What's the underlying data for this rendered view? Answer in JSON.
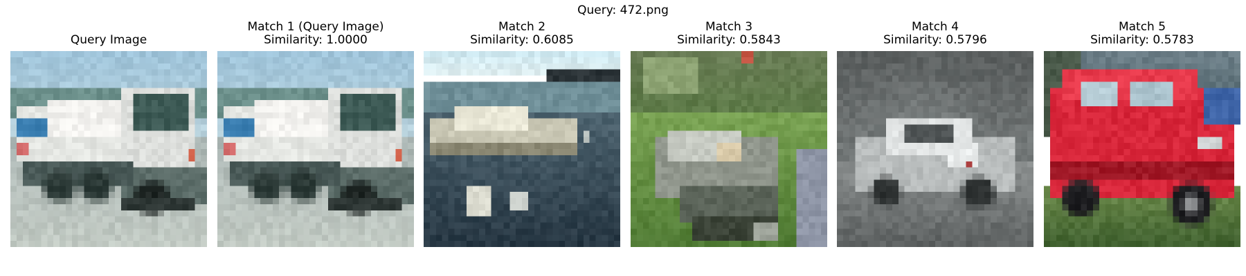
{
  "figure": {
    "title": "Query: 472.png"
  },
  "panels": [
    {
      "title": "Query Image",
      "subtitle": "",
      "scene": "truck"
    },
    {
      "title": "Match 1 (Query Image)",
      "subtitle": "Similarity: 1.0000",
      "scene": "truck"
    },
    {
      "title": "Match 2",
      "subtitle": "Similarity: 0.6085",
      "scene": "boat-lake"
    },
    {
      "title": "Match 3",
      "subtitle": "Similarity: 0.5843",
      "scene": "boat-grass"
    },
    {
      "title": "Match 4",
      "subtitle": "Similarity: 0.5796",
      "scene": "silver-car"
    },
    {
      "title": "Match 5",
      "subtitle": "Similarity: 0.5783",
      "scene": "red-car"
    }
  ]
}
